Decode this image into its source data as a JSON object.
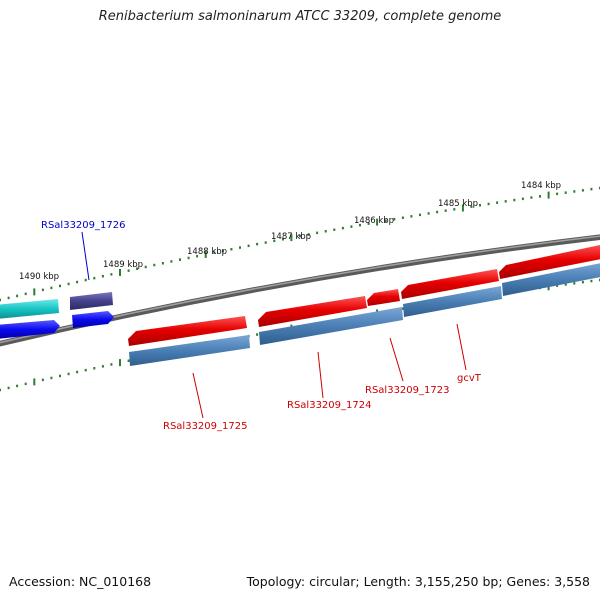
{
  "title": "Renibacterium salmoninarum ATCC 33209, complete genome",
  "footer": {
    "accession": "Accession: NC_010168",
    "summary": "Topology: circular; Length: 3,155,250 bp; Genes: 3,558"
  },
  "colors": {
    "backbone": "#777777",
    "ticks": "#2e7d32",
    "forward_gene": "#e60000",
    "reverse_gene": "#4a7fb5",
    "label_red": "#cc0000",
    "label_blue": "#0000cc",
    "cyan_gene": "#17c4c4",
    "blue_gene": "#0a0aee",
    "purple_gene": "#44408a"
  },
  "ticks": {
    "major_labels": [
      "1490 kbp",
      "1489 kbp",
      "1488 kbp",
      "1487 kbp",
      "1486 kbp",
      "1485 kbp",
      "1484 kbp"
    ]
  },
  "genes": {
    "labels": [
      "RSal33209_1726",
      "RSal33209_1725",
      "RSal33209_1724",
      "RSal33209_1723",
      "gcvT"
    ]
  }
}
